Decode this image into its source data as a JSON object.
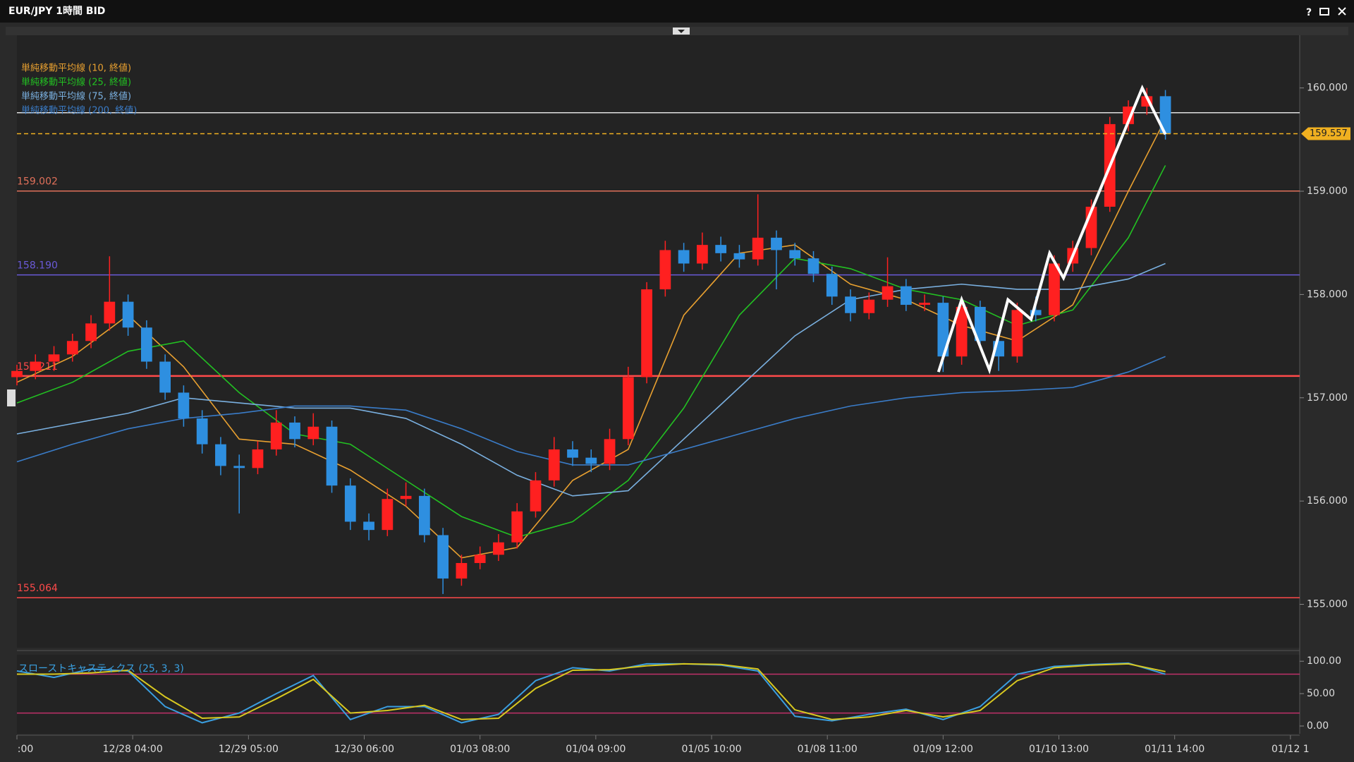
{
  "chart_data": [
    {
      "type": "candlestick",
      "title": "EUR/JPY 1時間 BID",
      "xlim": [
        0,
        277
      ],
      "ylim": [
        154.58,
        160.51
      ],
      "xticks": [
        {
          "value": 0,
          "label": ":00"
        },
        {
          "value": 25,
          "label": "12/28 04:00"
        },
        {
          "value": 50,
          "label": "12/29 05:00"
        },
        {
          "value": 75,
          "label": "12/30 06:00"
        },
        {
          "value": 100,
          "label": "01/03 08:00"
        },
        {
          "value": 125,
          "label": "01/04 09:00"
        },
        {
          "value": 150,
          "label": "01/05 10:00"
        },
        {
          "value": 175,
          "label": "01/08 11:00"
        },
        {
          "value": 200,
          "label": "01/09 12:00"
        },
        {
          "value": 225,
          "label": "01/10 13:00"
        },
        {
          "value": 250,
          "label": "01/11 14:00"
        },
        {
          "value": 275,
          "label": "01/12 1"
        }
      ],
      "yticks": [
        {
          "value": 155,
          "label": "155.000"
        },
        {
          "value": 156,
          "label": "156.000"
        },
        {
          "value": 157,
          "label": "157.000"
        },
        {
          "value": 158,
          "label": "158.000"
        },
        {
          "value": 159,
          "label": "159.000"
        },
        {
          "value": 160,
          "label": "160.000"
        }
      ],
      "up_color": "#ff2020",
      "down_color": "#2e8fe0",
      "x": [
        0,
        4,
        8,
        12,
        16,
        20,
        24,
        28,
        32,
        36,
        40,
        44,
        48,
        52,
        56,
        60,
        64,
        68,
        72,
        76,
        80,
        84,
        88,
        92,
        96,
        100,
        104,
        108,
        112,
        116,
        120,
        124,
        128,
        132,
        136,
        140,
        144,
        148,
        152,
        156,
        160,
        164,
        168,
        172,
        176,
        180,
        184,
        188,
        192,
        196,
        200,
        204,
        208,
        212,
        216,
        220,
        224,
        228,
        232,
        236,
        240,
        244,
        248
      ],
      "ohlc": [
        [
          157.2,
          157.32,
          157.12,
          157.26
        ],
        [
          157.26,
          157.42,
          157.18,
          157.35
        ],
        [
          157.35,
          157.5,
          157.26,
          157.42
        ],
        [
          157.42,
          157.62,
          157.35,
          157.55
        ],
        [
          157.55,
          157.8,
          157.48,
          157.72
        ],
        [
          157.72,
          158.37,
          157.65,
          157.93
        ],
        [
          157.93,
          158.0,
          157.6,
          157.68
        ],
        [
          157.68,
          157.75,
          157.28,
          157.35
        ],
        [
          157.35,
          157.42,
          156.98,
          157.05
        ],
        [
          157.05,
          157.12,
          156.72,
          156.8
        ],
        [
          156.8,
          156.88,
          156.46,
          156.55
        ],
        [
          156.55,
          156.62,
          156.25,
          156.34
        ],
        [
          156.34,
          156.45,
          155.88,
          156.32
        ],
        [
          156.32,
          156.58,
          156.26,
          156.5
        ],
        [
          156.5,
          156.88,
          156.44,
          156.76
        ],
        [
          156.76,
          156.82,
          156.52,
          156.6
        ],
        [
          156.6,
          156.85,
          156.54,
          156.72
        ],
        [
          156.72,
          156.78,
          156.08,
          156.15
        ],
        [
          156.15,
          156.22,
          155.72,
          155.8
        ],
        [
          155.8,
          155.88,
          155.62,
          155.72
        ],
        [
          155.72,
          156.12,
          155.66,
          156.02
        ],
        [
          156.02,
          156.18,
          155.95,
          156.05
        ],
        [
          156.05,
          156.12,
          155.6,
          155.67
        ],
        [
          155.67,
          155.74,
          155.1,
          155.25
        ],
        [
          155.25,
          155.48,
          155.18,
          155.4
        ],
        [
          155.4,
          155.56,
          155.34,
          155.48
        ],
        [
          155.48,
          155.68,
          155.42,
          155.6
        ],
        [
          155.6,
          155.98,
          155.54,
          155.9
        ],
        [
          155.9,
          156.28,
          155.84,
          156.2
        ],
        [
          156.2,
          156.62,
          156.14,
          156.5
        ],
        [
          156.5,
          156.58,
          156.34,
          156.42
        ],
        [
          156.42,
          156.5,
          156.28,
          156.36
        ],
        [
          156.36,
          156.7,
          156.3,
          156.6
        ],
        [
          156.6,
          157.3,
          156.54,
          157.2
        ],
        [
          157.2,
          158.12,
          157.14,
          158.05
        ],
        [
          158.05,
          158.52,
          157.98,
          158.43
        ],
        [
          158.43,
          158.5,
          158.22,
          158.3
        ],
        [
          158.3,
          158.6,
          158.24,
          158.48
        ],
        [
          158.48,
          158.56,
          158.32,
          158.4
        ],
        [
          158.4,
          158.48,
          158.26,
          158.34
        ],
        [
          158.34,
          158.97,
          158.28,
          158.55
        ],
        [
          158.55,
          158.62,
          158.05,
          158.43
        ],
        [
          158.43,
          158.5,
          158.28,
          158.35
        ],
        [
          158.35,
          158.42,
          158.12,
          158.2
        ],
        [
          158.2,
          158.27,
          157.9,
          157.98
        ],
        [
          157.98,
          158.05,
          157.74,
          157.82
        ],
        [
          157.82,
          158.02,
          157.76,
          157.95
        ],
        [
          157.95,
          158.36,
          157.88,
          158.08
        ],
        [
          158.08,
          158.15,
          157.84,
          157.9
        ],
        [
          157.9,
          158.0,
          157.84,
          157.92
        ],
        [
          157.92,
          157.98,
          157.25,
          157.4
        ],
        [
          157.4,
          157.95,
          157.32,
          157.88
        ],
        [
          157.88,
          157.94,
          157.48,
          157.55
        ],
        [
          157.55,
          157.62,
          157.26,
          157.4
        ],
        [
          157.4,
          157.92,
          157.34,
          157.85
        ],
        [
          157.85,
          157.98,
          157.74,
          157.8
        ],
        [
          157.8,
          158.38,
          157.74,
          158.3
        ],
        [
          158.3,
          158.52,
          158.22,
          158.45
        ],
        [
          158.45,
          158.92,
          158.38,
          158.85
        ],
        [
          158.85,
          159.72,
          158.8,
          159.65
        ],
        [
          159.65,
          159.88,
          159.58,
          159.82
        ],
        [
          159.82,
          160.0,
          159.74,
          159.92
        ],
        [
          159.92,
          159.98,
          159.5,
          159.56
        ]
      ],
      "series": [
        {
          "name": "単純移動平均線 (10, 終値)",
          "color": "#e8a030",
          "x": [
            0,
            12,
            24,
            36,
            48,
            60,
            72,
            84,
            96,
            108,
            120,
            132,
            144,
            156,
            168,
            180,
            192,
            204,
            216,
            228,
            240,
            248
          ],
          "values": [
            157.15,
            157.4,
            157.8,
            157.3,
            156.6,
            156.55,
            156.3,
            155.95,
            155.45,
            155.55,
            156.2,
            156.5,
            157.8,
            158.4,
            158.48,
            158.1,
            157.95,
            157.7,
            157.55,
            157.9,
            159.0,
            159.7
          ]
        },
        {
          "name": "単純移動平均線 (25, 終値)",
          "color": "#22c022",
          "x": [
            0,
            12,
            24,
            36,
            48,
            60,
            72,
            84,
            96,
            108,
            120,
            132,
            144,
            156,
            168,
            180,
            192,
            204,
            216,
            228,
            240,
            248
          ],
          "values": [
            156.95,
            157.15,
            157.45,
            157.55,
            157.05,
            156.65,
            156.55,
            156.2,
            155.85,
            155.65,
            155.8,
            156.2,
            156.9,
            157.8,
            158.35,
            158.25,
            158.05,
            157.95,
            157.7,
            157.85,
            158.55,
            159.25
          ]
        },
        {
          "name": "単純移動平均線 (75, 終値)",
          "color": "#7ab0e0",
          "x": [
            0,
            12,
            24,
            36,
            48,
            60,
            72,
            84,
            96,
            108,
            120,
            132,
            144,
            156,
            168,
            180,
            192,
            204,
            216,
            228,
            240,
            248
          ],
          "values": [
            156.65,
            156.75,
            156.85,
            157.0,
            156.95,
            156.9,
            156.9,
            156.8,
            156.55,
            156.25,
            156.05,
            156.1,
            156.6,
            157.1,
            157.6,
            157.95,
            158.05,
            158.1,
            158.05,
            158.05,
            158.15,
            158.3
          ]
        },
        {
          "name": "単純移動平均線 (200, 終値)",
          "color": "#3a7cc8",
          "x": [
            0,
            12,
            24,
            36,
            48,
            60,
            72,
            84,
            96,
            108,
            120,
            132,
            144,
            156,
            168,
            180,
            192,
            204,
            216,
            228,
            240,
            248
          ],
          "values": [
            156.38,
            156.55,
            156.7,
            156.8,
            156.85,
            156.92,
            156.92,
            156.88,
            156.7,
            156.48,
            156.35,
            156.35,
            156.5,
            156.65,
            156.8,
            156.92,
            157.0,
            157.05,
            157.07,
            157.1,
            157.25,
            157.4
          ]
        }
      ],
      "hlines": [
        {
          "value": 159.76,
          "color": "#e0e0e0"
        },
        {
          "value": 159.002,
          "color": "#e0705a"
        },
        {
          "value": 158.19,
          "label": "158.190",
          "color": "#6a5ad8"
        },
        {
          "value": 157.211,
          "color": "#ff4a4a"
        },
        {
          "value": 155.064,
          "color": "#ff4a4a"
        }
      ],
      "current_price": {
        "value": 159.557,
        "color": "#f0b020"
      },
      "annotation": {
        "color": "#ffffff",
        "x": [
          199,
          204,
          210,
          214,
          219,
          223,
          226,
          243,
          248
        ],
        "y": [
          157.25,
          157.95,
          157.27,
          157.95,
          157.76,
          158.4,
          158.16,
          160.0,
          159.55
        ]
      }
    },
    {
      "type": "line",
      "title": "スローストキャスティクス (25, 3, 3)",
      "xlim": [
        0,
        277
      ],
      "ylim": [
        -12,
        110
      ],
      "yticks": [
        {
          "value": 0,
          "label": "0.00"
        },
        {
          "value": 50,
          "label": "50.00"
        },
        {
          "value": 100,
          "label": "100.00"
        }
      ],
      "hlines": [
        {
          "value": 80,
          "color": "#c0306a"
        },
        {
          "value": 20,
          "color": "#c0306a"
        }
      ],
      "series": [
        {
          "color": "#3a9ee0",
          "x": [
            0,
            8,
            16,
            24,
            32,
            40,
            48,
            56,
            64,
            72,
            80,
            88,
            96,
            104,
            112,
            120,
            128,
            136,
            144,
            152,
            160,
            168,
            176,
            184,
            192,
            200,
            208,
            216,
            224,
            232,
            240,
            248
          ],
          "values": [
            85,
            75,
            88,
            85,
            30,
            5,
            20,
            50,
            78,
            10,
            30,
            30,
            5,
            18,
            70,
            90,
            85,
            96,
            96,
            94,
            85,
            15,
            8,
            18,
            26,
            10,
            30,
            80,
            92,
            95,
            97,
            80
          ]
        },
        {
          "color": "#d8c820",
          "x": [
            0,
            8,
            16,
            24,
            32,
            40,
            48,
            56,
            64,
            72,
            80,
            88,
            96,
            104,
            112,
            120,
            128,
            136,
            144,
            152,
            160,
            168,
            176,
            184,
            192,
            200,
            208,
            216,
            224,
            232,
            240,
            248
          ],
          "values": [
            80,
            80,
            82,
            86,
            45,
            12,
            14,
            42,
            72,
            20,
            24,
            32,
            10,
            12,
            58,
            86,
            87,
            93,
            96,
            95,
            88,
            25,
            10,
            14,
            24,
            14,
            24,
            70,
            90,
            94,
            96,
            84
          ]
        }
      ]
    }
  ]
}
